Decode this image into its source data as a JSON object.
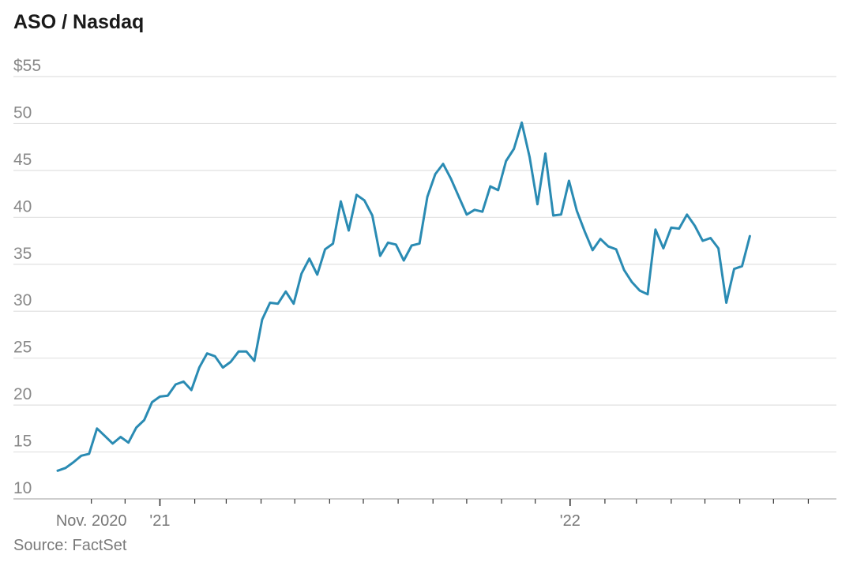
{
  "chart_data": {
    "type": "line",
    "title": "ASO / Nasdaq",
    "source": "Source: FactSet",
    "ylim": [
      10,
      55
    ],
    "y_ticks": [
      {
        "value": 55,
        "label": "$55"
      },
      {
        "value": 50,
        "label": "50"
      },
      {
        "value": 45,
        "label": "45"
      },
      {
        "value": 40,
        "label": "40"
      },
      {
        "value": 35,
        "label": "35"
      },
      {
        "value": 30,
        "label": "30"
      },
      {
        "value": 25,
        "label": "25"
      },
      {
        "value": 20,
        "label": "20"
      },
      {
        "value": 15,
        "label": "15"
      },
      {
        "value": 10,
        "label": "10"
      }
    ],
    "xlim": [
      "2020-10-02",
      "2022-08-26"
    ],
    "x_major_ticks": [
      {
        "date": "2020-11-01",
        "label": "Nov. 2020"
      },
      {
        "date": "2021-01-01",
        "label": "'21"
      },
      {
        "date": "2022-01-01",
        "label": "'22"
      }
    ],
    "grid": true,
    "series": [
      {
        "color": "#2a8bb3",
        "points": [
          [
            "2020-10-02",
            13.0
          ],
          [
            "2020-10-09",
            13.3
          ],
          [
            "2020-10-16",
            13.9
          ],
          [
            "2020-10-23",
            14.6
          ],
          [
            "2020-10-30",
            14.8
          ],
          [
            "2020-11-06",
            17.5
          ],
          [
            "2020-11-13",
            16.7
          ],
          [
            "2020-11-20",
            15.9
          ],
          [
            "2020-11-27",
            16.6
          ],
          [
            "2020-12-04",
            16.0
          ],
          [
            "2020-12-11",
            17.6
          ],
          [
            "2020-12-18",
            18.4
          ],
          [
            "2020-12-25",
            20.3
          ],
          [
            "2021-01-01",
            20.9
          ],
          [
            "2021-01-08",
            21.0
          ],
          [
            "2021-01-15",
            22.2
          ],
          [
            "2021-01-22",
            22.5
          ],
          [
            "2021-01-29",
            21.6
          ],
          [
            "2021-02-05",
            24.0
          ],
          [
            "2021-02-12",
            25.5
          ],
          [
            "2021-02-19",
            25.2
          ],
          [
            "2021-02-26",
            24.0
          ],
          [
            "2021-03-05",
            24.6
          ],
          [
            "2021-03-12",
            25.7
          ],
          [
            "2021-03-19",
            25.7
          ],
          [
            "2021-03-26",
            24.7
          ],
          [
            "2021-04-02",
            29.1
          ],
          [
            "2021-04-09",
            30.9
          ],
          [
            "2021-04-16",
            30.8
          ],
          [
            "2021-04-23",
            32.1
          ],
          [
            "2021-04-30",
            30.8
          ],
          [
            "2021-05-07",
            34.0
          ],
          [
            "2021-05-14",
            35.6
          ],
          [
            "2021-05-21",
            33.9
          ],
          [
            "2021-05-28",
            36.6
          ],
          [
            "2021-06-04",
            37.2
          ],
          [
            "2021-06-11",
            41.7
          ],
          [
            "2021-06-18",
            38.6
          ],
          [
            "2021-06-25",
            42.4
          ],
          [
            "2021-07-02",
            41.8
          ],
          [
            "2021-07-09",
            40.2
          ],
          [
            "2021-07-16",
            35.9
          ],
          [
            "2021-07-23",
            37.3
          ],
          [
            "2021-07-30",
            37.1
          ],
          [
            "2021-08-06",
            35.4
          ],
          [
            "2021-08-13",
            37.0
          ],
          [
            "2021-08-20",
            37.2
          ],
          [
            "2021-08-27",
            42.2
          ],
          [
            "2021-09-03",
            44.6
          ],
          [
            "2021-09-10",
            45.7
          ],
          [
            "2021-09-17",
            44.1
          ],
          [
            "2021-09-24",
            42.2
          ],
          [
            "2021-10-01",
            40.3
          ],
          [
            "2021-10-08",
            40.8
          ],
          [
            "2021-10-15",
            40.6
          ],
          [
            "2021-10-22",
            43.3
          ],
          [
            "2021-10-29",
            42.9
          ],
          [
            "2021-11-05",
            46.0
          ],
          [
            "2021-11-12",
            47.3
          ],
          [
            "2021-11-19",
            50.1
          ],
          [
            "2021-11-26",
            46.4
          ],
          [
            "2021-12-03",
            41.4
          ],
          [
            "2021-12-10",
            46.8
          ],
          [
            "2021-12-17",
            40.2
          ],
          [
            "2021-12-24",
            40.3
          ],
          [
            "2021-12-31",
            43.9
          ],
          [
            "2022-01-07",
            40.7
          ],
          [
            "2022-01-14",
            38.5
          ],
          [
            "2022-01-21",
            36.5
          ],
          [
            "2022-01-28",
            37.7
          ],
          [
            "2022-02-04",
            36.9
          ],
          [
            "2022-02-11",
            36.6
          ],
          [
            "2022-02-18",
            34.4
          ],
          [
            "2022-02-25",
            33.1
          ],
          [
            "2022-03-04",
            32.2
          ],
          [
            "2022-03-11",
            31.8
          ],
          [
            "2022-03-18",
            38.7
          ],
          [
            "2022-03-25",
            36.7
          ],
          [
            "2022-04-01",
            38.9
          ],
          [
            "2022-04-08",
            38.8
          ],
          [
            "2022-04-15",
            40.3
          ],
          [
            "2022-04-22",
            39.1
          ],
          [
            "2022-04-29",
            37.5
          ],
          [
            "2022-05-06",
            37.8
          ],
          [
            "2022-05-13",
            36.7
          ],
          [
            "2022-05-20",
            30.9
          ],
          [
            "2022-05-27",
            34.5
          ],
          [
            "2022-06-03",
            34.8
          ],
          [
            "2022-06-10",
            38.0
          ]
        ]
      }
    ]
  }
}
